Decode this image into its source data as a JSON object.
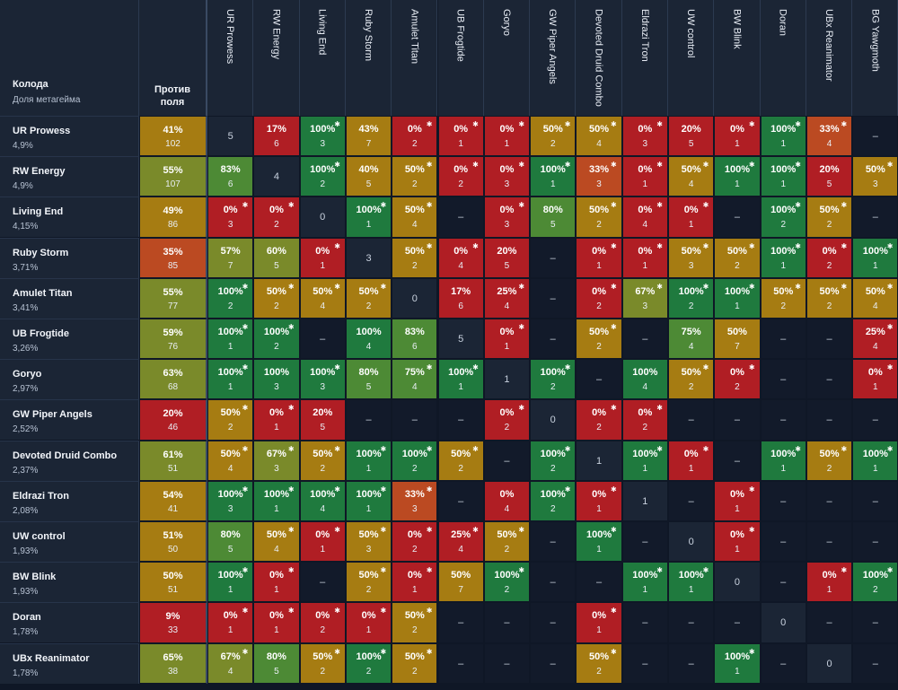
{
  "header": {
    "deck_label": "Колода",
    "share_label": "Доля метагейма",
    "field_label_line1": "Против",
    "field_label_line2": "поля"
  },
  "columns": [
    "UR Prowess",
    "RW Energy",
    "Living End",
    "Ruby Storm",
    "Amulet Titan",
    "UB Frogtide",
    "Goryo",
    "GW Piper Angels",
    "Devoted Druid Combo",
    "Eldrazi Tron",
    "UW control",
    "BW Blink",
    "Doran",
    "UBx Reanimator",
    "BG Yawgmoth"
  ],
  "colors": {
    "dark_green": "#1f7a3e",
    "mid_green": "#4d8a35",
    "olive": "#7a8a2a",
    "amber": "#a67c12",
    "orange_red": "#bb4a22",
    "red": "#b01e24",
    "dash": "#121a2a",
    "self": "#1b2535"
  },
  "rows": [
    {
      "name": "UR Prowess",
      "share": "4,9%",
      "field": {
        "pct": "41%",
        "n": "102"
      },
      "cells": [
        {
          "type": "self",
          "n": "5"
        },
        {
          "pct": "17%",
          "n": "6"
        },
        {
          "pct": "100%",
          "n": "3",
          "star": true
        },
        {
          "pct": "43%",
          "n": "7"
        },
        {
          "pct": "0%",
          "n": "2",
          "star": true
        },
        {
          "pct": "0%",
          "n": "1",
          "star": true
        },
        {
          "pct": "0%",
          "n": "1",
          "star": true
        },
        {
          "pct": "50%",
          "n": "2",
          "star": true
        },
        {
          "pct": "50%",
          "n": "4",
          "star": true
        },
        {
          "pct": "0%",
          "n": "3",
          "star": true
        },
        {
          "pct": "20%",
          "n": "5"
        },
        {
          "pct": "0%",
          "n": "1",
          "star": true
        },
        {
          "pct": "100%",
          "n": "1",
          "star": true
        },
        {
          "pct": "33%",
          "n": "4",
          "star": true
        },
        {
          "type": "dash"
        }
      ]
    },
    {
      "name": "RW Energy",
      "share": "4,9%",
      "field": {
        "pct": "55%",
        "n": "107"
      },
      "cells": [
        {
          "pct": "83%",
          "n": "6"
        },
        {
          "type": "self",
          "n": "4"
        },
        {
          "pct": "100%",
          "n": "2",
          "star": true
        },
        {
          "pct": "40%",
          "n": "5"
        },
        {
          "pct": "50%",
          "n": "2",
          "star": true
        },
        {
          "pct": "0%",
          "n": "2",
          "star": true
        },
        {
          "pct": "0%",
          "n": "3",
          "star": true
        },
        {
          "pct": "100%",
          "n": "1",
          "star": true
        },
        {
          "pct": "33%",
          "n": "3",
          "star": true
        },
        {
          "pct": "0%",
          "n": "1",
          "star": true
        },
        {
          "pct": "50%",
          "n": "4",
          "star": true
        },
        {
          "pct": "100%",
          "n": "1",
          "star": true
        },
        {
          "pct": "100%",
          "n": "1",
          "star": true
        },
        {
          "pct": "20%",
          "n": "5"
        },
        {
          "pct": "50%",
          "n": "3",
          "star": true
        }
      ]
    },
    {
      "name": "Living End",
      "share": "4,15%",
      "field": {
        "pct": "49%",
        "n": "86"
      },
      "cells": [
        {
          "pct": "0%",
          "n": "3",
          "star": true
        },
        {
          "pct": "0%",
          "n": "2",
          "star": true
        },
        {
          "type": "self",
          "n": "0"
        },
        {
          "pct": "100%",
          "n": "1",
          "star": true
        },
        {
          "pct": "50%",
          "n": "4",
          "star": true
        },
        {
          "type": "dash"
        },
        {
          "pct": "0%",
          "n": "3",
          "star": true
        },
        {
          "pct": "80%",
          "n": "5"
        },
        {
          "pct": "50%",
          "n": "2",
          "star": true
        },
        {
          "pct": "0%",
          "n": "4",
          "star": true
        },
        {
          "pct": "0%",
          "n": "1",
          "star": true
        },
        {
          "type": "dash"
        },
        {
          "pct": "100%",
          "n": "2",
          "star": true
        },
        {
          "pct": "50%",
          "n": "2",
          "star": true
        },
        {
          "type": "dash"
        }
      ]
    },
    {
      "name": "Ruby Storm",
      "share": "3,71%",
      "field": {
        "pct": "35%",
        "n": "85"
      },
      "cells": [
        {
          "pct": "57%",
          "n": "7"
        },
        {
          "pct": "60%",
          "n": "5"
        },
        {
          "pct": "0%",
          "n": "1",
          "star": true
        },
        {
          "type": "self",
          "n": "3"
        },
        {
          "pct": "50%",
          "n": "2",
          "star": true
        },
        {
          "pct": "0%",
          "n": "4",
          "star": true
        },
        {
          "pct": "20%",
          "n": "5"
        },
        {
          "type": "dash"
        },
        {
          "pct": "0%",
          "n": "1",
          "star": true
        },
        {
          "pct": "0%",
          "n": "1",
          "star": true
        },
        {
          "pct": "50%",
          "n": "3",
          "star": true
        },
        {
          "pct": "50%",
          "n": "2",
          "star": true
        },
        {
          "pct": "100%",
          "n": "1",
          "star": true
        },
        {
          "pct": "0%",
          "n": "2",
          "star": true
        },
        {
          "pct": "100%",
          "n": "1",
          "star": true
        }
      ]
    },
    {
      "name": "Amulet Titan",
      "share": "3,41%",
      "field": {
        "pct": "55%",
        "n": "77"
      },
      "cells": [
        {
          "pct": "100%",
          "n": "2",
          "star": true
        },
        {
          "pct": "50%",
          "n": "2",
          "star": true
        },
        {
          "pct": "50%",
          "n": "4",
          "star": true
        },
        {
          "pct": "50%",
          "n": "2",
          "star": true
        },
        {
          "type": "self",
          "n": "0"
        },
        {
          "pct": "17%",
          "n": "6"
        },
        {
          "pct": "25%",
          "n": "4",
          "star": true
        },
        {
          "type": "dash"
        },
        {
          "pct": "0%",
          "n": "2",
          "star": true
        },
        {
          "pct": "67%",
          "n": "3",
          "star": true
        },
        {
          "pct": "100%",
          "n": "2",
          "star": true
        },
        {
          "pct": "100%",
          "n": "1",
          "star": true
        },
        {
          "pct": "50%",
          "n": "2",
          "star": true
        },
        {
          "pct": "50%",
          "n": "2",
          "star": true
        },
        {
          "pct": "50%",
          "n": "4",
          "star": true
        }
      ]
    },
    {
      "name": "UB Frogtide",
      "share": "3,26%",
      "field": {
        "pct": "59%",
        "n": "76"
      },
      "cells": [
        {
          "pct": "100%",
          "n": "1",
          "star": true
        },
        {
          "pct": "100%",
          "n": "2",
          "star": true
        },
        {
          "type": "dash"
        },
        {
          "pct": "100%",
          "n": "4"
        },
        {
          "pct": "83%",
          "n": "6"
        },
        {
          "type": "self",
          "n": "5"
        },
        {
          "pct": "0%",
          "n": "1",
          "star": true
        },
        {
          "type": "dash"
        },
        {
          "pct": "50%",
          "n": "2",
          "star": true
        },
        {
          "type": "dash"
        },
        {
          "pct": "75%",
          "n": "4"
        },
        {
          "pct": "50%",
          "n": "7"
        },
        {
          "type": "dash"
        },
        {
          "type": "dash"
        },
        {
          "pct": "25%",
          "n": "4",
          "star": true
        }
      ]
    },
    {
      "name": "Goryo",
      "share": "2,97%",
      "field": {
        "pct": "63%",
        "n": "68"
      },
      "cells": [
        {
          "pct": "100%",
          "n": "1",
          "star": true
        },
        {
          "pct": "100%",
          "n": "3"
        },
        {
          "pct": "100%",
          "n": "3",
          "star": true
        },
        {
          "pct": "80%",
          "n": "5"
        },
        {
          "pct": "75%",
          "n": "4",
          "star": true
        },
        {
          "pct": "100%",
          "n": "1",
          "star": true
        },
        {
          "type": "self",
          "n": "1"
        },
        {
          "pct": "100%",
          "n": "2",
          "star": true
        },
        {
          "type": "dash"
        },
        {
          "pct": "100%",
          "n": "4"
        },
        {
          "pct": "50%",
          "n": "2",
          "star": true
        },
        {
          "pct": "0%",
          "n": "2",
          "star": true
        },
        {
          "type": "dash"
        },
        {
          "type": "dash"
        },
        {
          "pct": "0%",
          "n": "1",
          "star": true
        }
      ]
    },
    {
      "name": "GW Piper Angels",
      "share": "2,52%",
      "field": {
        "pct": "20%",
        "n": "46"
      },
      "cells": [
        {
          "pct": "50%",
          "n": "2",
          "star": true
        },
        {
          "pct": "0%",
          "n": "1",
          "star": true
        },
        {
          "pct": "20%",
          "n": "5"
        },
        {
          "type": "dash"
        },
        {
          "type": "dash"
        },
        {
          "type": "dash"
        },
        {
          "pct": "0%",
          "n": "2",
          "star": true
        },
        {
          "type": "self",
          "n": "0"
        },
        {
          "pct": "0%",
          "n": "2",
          "star": true
        },
        {
          "pct": "0%",
          "n": "2",
          "star": true
        },
        {
          "type": "dash"
        },
        {
          "type": "dash"
        },
        {
          "type": "dash"
        },
        {
          "type": "dash"
        },
        {
          "type": "dash"
        }
      ]
    },
    {
      "name": "Devoted Druid Combo",
      "share": "2,37%",
      "field": {
        "pct": "61%",
        "n": "51"
      },
      "cells": [
        {
          "pct": "50%",
          "n": "4",
          "star": true
        },
        {
          "pct": "67%",
          "n": "3",
          "star": true
        },
        {
          "pct": "50%",
          "n": "2",
          "star": true
        },
        {
          "pct": "100%",
          "n": "1",
          "star": true
        },
        {
          "pct": "100%",
          "n": "2",
          "star": true
        },
        {
          "pct": "50%",
          "n": "2",
          "star": true
        },
        {
          "type": "dash"
        },
        {
          "pct": "100%",
          "n": "2",
          "star": true
        },
        {
          "type": "self",
          "n": "1"
        },
        {
          "pct": "100%",
          "n": "1",
          "star": true
        },
        {
          "pct": "0%",
          "n": "1",
          "star": true
        },
        {
          "type": "dash"
        },
        {
          "pct": "100%",
          "n": "1",
          "star": true
        },
        {
          "pct": "50%",
          "n": "2",
          "star": true
        },
        {
          "pct": "100%",
          "n": "1",
          "star": true
        }
      ]
    },
    {
      "name": "Eldrazi Tron",
      "share": "2,08%",
      "field": {
        "pct": "54%",
        "n": "41"
      },
      "cells": [
        {
          "pct": "100%",
          "n": "3",
          "star": true
        },
        {
          "pct": "100%",
          "n": "1",
          "star": true
        },
        {
          "pct": "100%",
          "n": "4",
          "star": true
        },
        {
          "pct": "100%",
          "n": "1",
          "star": true
        },
        {
          "pct": "33%",
          "n": "3",
          "star": true
        },
        {
          "type": "dash"
        },
        {
          "pct": "0%",
          "n": "4"
        },
        {
          "pct": "100%",
          "n": "2",
          "star": true
        },
        {
          "pct": "0%",
          "n": "1",
          "star": true
        },
        {
          "type": "self",
          "n": "1"
        },
        {
          "type": "dash"
        },
        {
          "pct": "0%",
          "n": "1",
          "star": true
        },
        {
          "type": "dash"
        },
        {
          "type": "dash"
        },
        {
          "type": "dash"
        }
      ]
    },
    {
      "name": "UW control",
      "share": "1,93%",
      "field": {
        "pct": "51%",
        "n": "50"
      },
      "cells": [
        {
          "pct": "80%",
          "n": "5"
        },
        {
          "pct": "50%",
          "n": "4",
          "star": true
        },
        {
          "pct": "0%",
          "n": "1",
          "star": true
        },
        {
          "pct": "50%",
          "n": "3",
          "star": true
        },
        {
          "pct": "0%",
          "n": "2",
          "star": true
        },
        {
          "pct": "25%",
          "n": "4",
          "star": true
        },
        {
          "pct": "50%",
          "n": "2",
          "star": true
        },
        {
          "type": "dash"
        },
        {
          "pct": "100%",
          "n": "1",
          "star": true
        },
        {
          "type": "dash"
        },
        {
          "type": "self",
          "n": "0"
        },
        {
          "pct": "0%",
          "n": "1",
          "star": true
        },
        {
          "type": "dash"
        },
        {
          "type": "dash"
        },
        {
          "type": "dash"
        }
      ]
    },
    {
      "name": "BW Blink",
      "share": "1,93%",
      "field": {
        "pct": "50%",
        "n": "51"
      },
      "cells": [
        {
          "pct": "100%",
          "n": "1",
          "star": true
        },
        {
          "pct": "0%",
          "n": "1",
          "star": true
        },
        {
          "type": "dash"
        },
        {
          "pct": "50%",
          "n": "2",
          "star": true
        },
        {
          "pct": "0%",
          "n": "1",
          "star": true
        },
        {
          "pct": "50%",
          "n": "7"
        },
        {
          "pct": "100%",
          "n": "2",
          "star": true
        },
        {
          "type": "dash"
        },
        {
          "type": "dash"
        },
        {
          "pct": "100%",
          "n": "1",
          "star": true
        },
        {
          "pct": "100%",
          "n": "1",
          "star": true
        },
        {
          "type": "self",
          "n": "0"
        },
        {
          "type": "dash"
        },
        {
          "pct": "0%",
          "n": "1",
          "star": true
        },
        {
          "pct": "100%",
          "n": "2",
          "star": true
        }
      ]
    },
    {
      "name": "Doran",
      "share": "1,78%",
      "field": {
        "pct": "9%",
        "n": "33"
      },
      "cells": [
        {
          "pct": "0%",
          "n": "1",
          "star": true
        },
        {
          "pct": "0%",
          "n": "1",
          "star": true
        },
        {
          "pct": "0%",
          "n": "2",
          "star": true
        },
        {
          "pct": "0%",
          "n": "1",
          "star": true
        },
        {
          "pct": "50%",
          "n": "2",
          "star": true
        },
        {
          "type": "dash"
        },
        {
          "type": "dash"
        },
        {
          "type": "dash"
        },
        {
          "pct": "0%",
          "n": "1",
          "star": true
        },
        {
          "type": "dash"
        },
        {
          "type": "dash"
        },
        {
          "type": "dash"
        },
        {
          "type": "self",
          "n": "0"
        },
        {
          "type": "dash"
        },
        {
          "type": "dash"
        }
      ]
    },
    {
      "name": "UBx Reanimator",
      "share": "1,78%",
      "field": {
        "pct": "65%",
        "n": "38"
      },
      "cells": [
        {
          "pct": "67%",
          "n": "4",
          "star": true
        },
        {
          "pct": "80%",
          "n": "5"
        },
        {
          "pct": "50%",
          "n": "2",
          "star": true
        },
        {
          "pct": "100%",
          "n": "2",
          "star": true
        },
        {
          "pct": "50%",
          "n": "2",
          "star": true
        },
        {
          "type": "dash"
        },
        {
          "type": "dash"
        },
        {
          "type": "dash"
        },
        {
          "pct": "50%",
          "n": "2",
          "star": true
        },
        {
          "type": "dash"
        },
        {
          "type": "dash"
        },
        {
          "pct": "100%",
          "n": "1",
          "star": true
        },
        {
          "type": "dash"
        },
        {
          "type": "self",
          "n": "0"
        },
        {
          "type": "dash"
        }
      ]
    }
  ]
}
